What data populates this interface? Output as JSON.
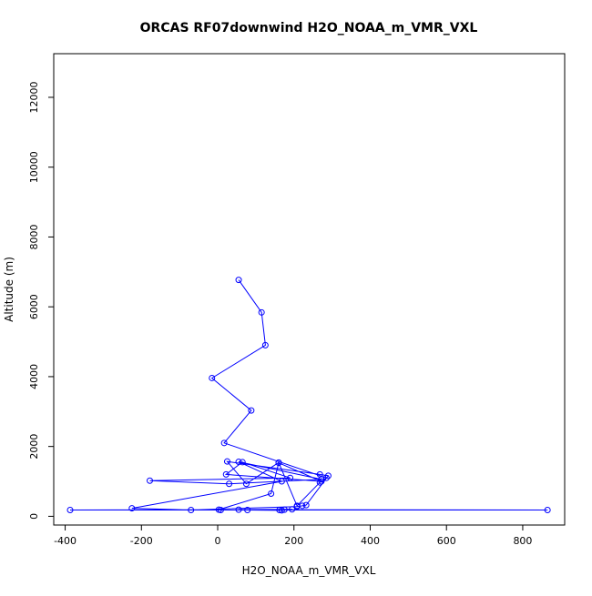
{
  "chart_data": {
    "type": "line",
    "title": "ORCAS RF07downwind H2O_NOAA_m_VMR_VXL",
    "xlabel": "H2O_NOAA_m_VMR_VXL",
    "ylabel": "Altitude (m)",
    "xlim": [
      -430,
      910
    ],
    "ylim": [
      -250,
      13250
    ],
    "xticks": [
      -400,
      -200,
      0,
      200,
      400,
      600,
      800
    ],
    "yticks": [
      0,
      2000,
      4000,
      6000,
      8000,
      10000,
      12000
    ],
    "xtick_labels": [
      "-400",
      "-200",
      "0",
      "200",
      "400",
      "600",
      "800"
    ],
    "ytick_labels": [
      "0",
      "2000",
      "4000",
      "6000",
      "8000",
      "10000",
      "12000"
    ],
    "grid": false,
    "color": "#0000ff",
    "series": [
      {
        "x": [
          55,
          115,
          125,
          -15,
          88,
          17,
          285,
          268,
          208,
          160,
          75,
          25,
          268,
          290,
          232,
          222,
          208,
          -70,
          -225,
          168,
          55,
          272,
          30,
          -178,
          190,
          65,
          22,
          272,
          160,
          140,
          3,
          -387,
          865,
          175,
          78,
          168,
          195,
          55,
          162,
          8
        ],
        "y": [
          6770,
          5840,
          4900,
          3960,
          3030,
          2100,
          1100,
          970,
          300,
          1540,
          930,
          1570,
          1200,
          1160,
          320,
          300,
          280,
          180,
          230,
          1000,
          1560,
          1060,
          930,
          1020,
          1100,
          1550,
          1200,
          1000,
          1530,
          650,
          190,
          180,
          180,
          190,
          180,
          170,
          200,
          190,
          180,
          180
        ]
      }
    ]
  }
}
